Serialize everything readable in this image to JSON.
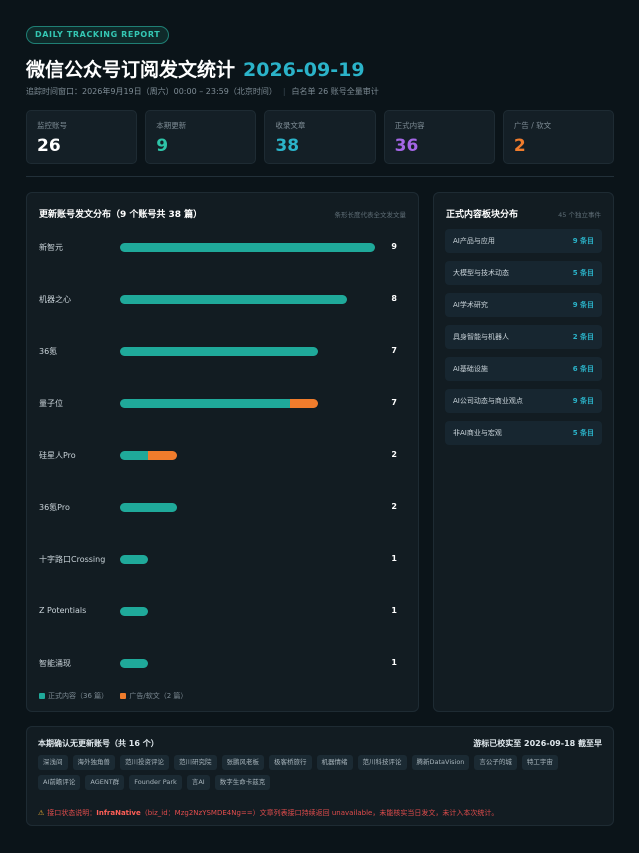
{
  "header": {
    "badge": "DAILY TRACKING REPORT",
    "title": "微信公众号订阅发文统计",
    "date": "2026-09-19",
    "window": "追踪时间窗口：2026年9月19日（周六）00:00 – 23:59（北京时间）",
    "scope": "白名单 26 账号全量审计"
  },
  "stats": [
    {
      "label": "监控账号",
      "value": "26",
      "color": "#ffffff"
    },
    {
      "label": "本期更新",
      "value": "9",
      "color": "#2ec4a8"
    },
    {
      "label": "收录文章",
      "value": "38",
      "color": "#2bb3c9"
    },
    {
      "label": "正式内容",
      "value": "36",
      "color": "#a466e6"
    },
    {
      "label": "广告 / 软文",
      "value": "2",
      "color": "#f07c2c"
    }
  ],
  "distribution": {
    "title": "更新账号发文分布（9 个账号共 38 篇）",
    "note": "条形长度代表全文发文量",
    "max": 9,
    "rows": [
      {
        "name": "新智元",
        "formal": 9,
        "ad": 0,
        "total": "9"
      },
      {
        "name": "机器之心",
        "formal": 8,
        "ad": 0,
        "total": "8"
      },
      {
        "name": "36氪",
        "formal": 7,
        "ad": 0,
        "total": "7"
      },
      {
        "name": "量子位",
        "formal": 6,
        "ad": 1,
        "total": "7"
      },
      {
        "name": "硅星人Pro",
        "formal": 1,
        "ad": 1,
        "total": "2"
      },
      {
        "name": "36氪Pro",
        "formal": 2,
        "ad": 0,
        "total": "2"
      },
      {
        "name": "十字路口Crossing",
        "formal": 1,
        "ad": 0,
        "total": "1"
      },
      {
        "name": "Z Potentials",
        "formal": 1,
        "ad": 0,
        "total": "1"
      },
      {
        "name": "智能涌现",
        "formal": 1,
        "ad": 0,
        "total": "1"
      }
    ],
    "legend_formal": "正式内容（36 篇）",
    "legend_ad": "广告/软文（2 篇）",
    "color_formal": "#1fa99a",
    "color_ad": "#f07c2c"
  },
  "modules": {
    "title": "正式内容板块分布",
    "note": "45 个独立事件",
    "items": [
      {
        "name": "AI产品与应用",
        "count": "9 条目"
      },
      {
        "name": "大模型与技术动态",
        "count": "5 条目"
      },
      {
        "name": "AI学术研究",
        "count": "9 条目"
      },
      {
        "name": "具身智能与机器人",
        "count": "2 条目"
      },
      {
        "name": "AI基础设施",
        "count": "6 条目"
      },
      {
        "name": "AI公司动态与商业观点",
        "count": "9 条目"
      },
      {
        "name": "非AI商业与宏观",
        "count": "5 条目"
      }
    ]
  },
  "inactive": {
    "title": "本期确认无更新账号（共 16 个）",
    "note": "游标已校实至 2026-09-18 截至早",
    "accounts": [
      "深浅间",
      "海外独角兽",
      "范川投资评论",
      "范川研究院",
      "张鹏风老板",
      "极客桥旅行",
      "机器情绪",
      "范川科技评论",
      "腾新DataVision",
      "言公子的城",
      "特工宇宙",
      "AI前瞻评论",
      "AGENT群",
      "Founder Park",
      "言AI",
      "数字生命卡兹克"
    ]
  },
  "warning": {
    "prefix": "接口状态说明：",
    "account": "InfraNative",
    "rest": "（biz_id：Mzg2NzYSMDE4Ng==）文章列表接口持续返回 unavailable，未能核实当日发文，未计入本次统计。"
  }
}
